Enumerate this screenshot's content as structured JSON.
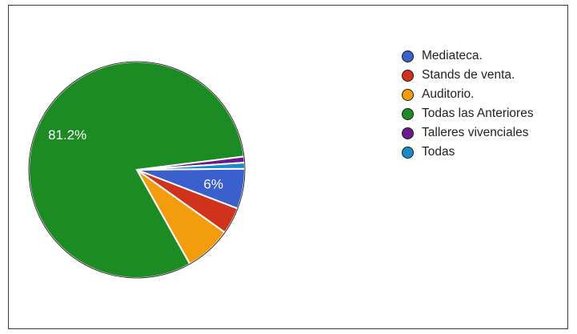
{
  "chart_data": {
    "type": "pie",
    "series": [
      {
        "name": "Mediateca.",
        "value": 6.0,
        "color": "#3b5fcc",
        "label": "6%"
      },
      {
        "name": "Stands de venta.",
        "value": 4.0,
        "color": "#d0321b",
        "label": ""
      },
      {
        "name": "Auditorio.",
        "value": 7.0,
        "color": "#f39c0e",
        "label": ""
      },
      {
        "name": "Todas las Anteriores",
        "value": 81.2,
        "color": "#1d8b23",
        "label": "81.2%"
      },
      {
        "name": "Talleres vivenciales",
        "value": 0.9,
        "color": "#6a1a8a",
        "label": ""
      },
      {
        "name": "Todas",
        "value": 0.9,
        "color": "#1b8bc7",
        "label": ""
      }
    ],
    "legend_position": "right"
  }
}
